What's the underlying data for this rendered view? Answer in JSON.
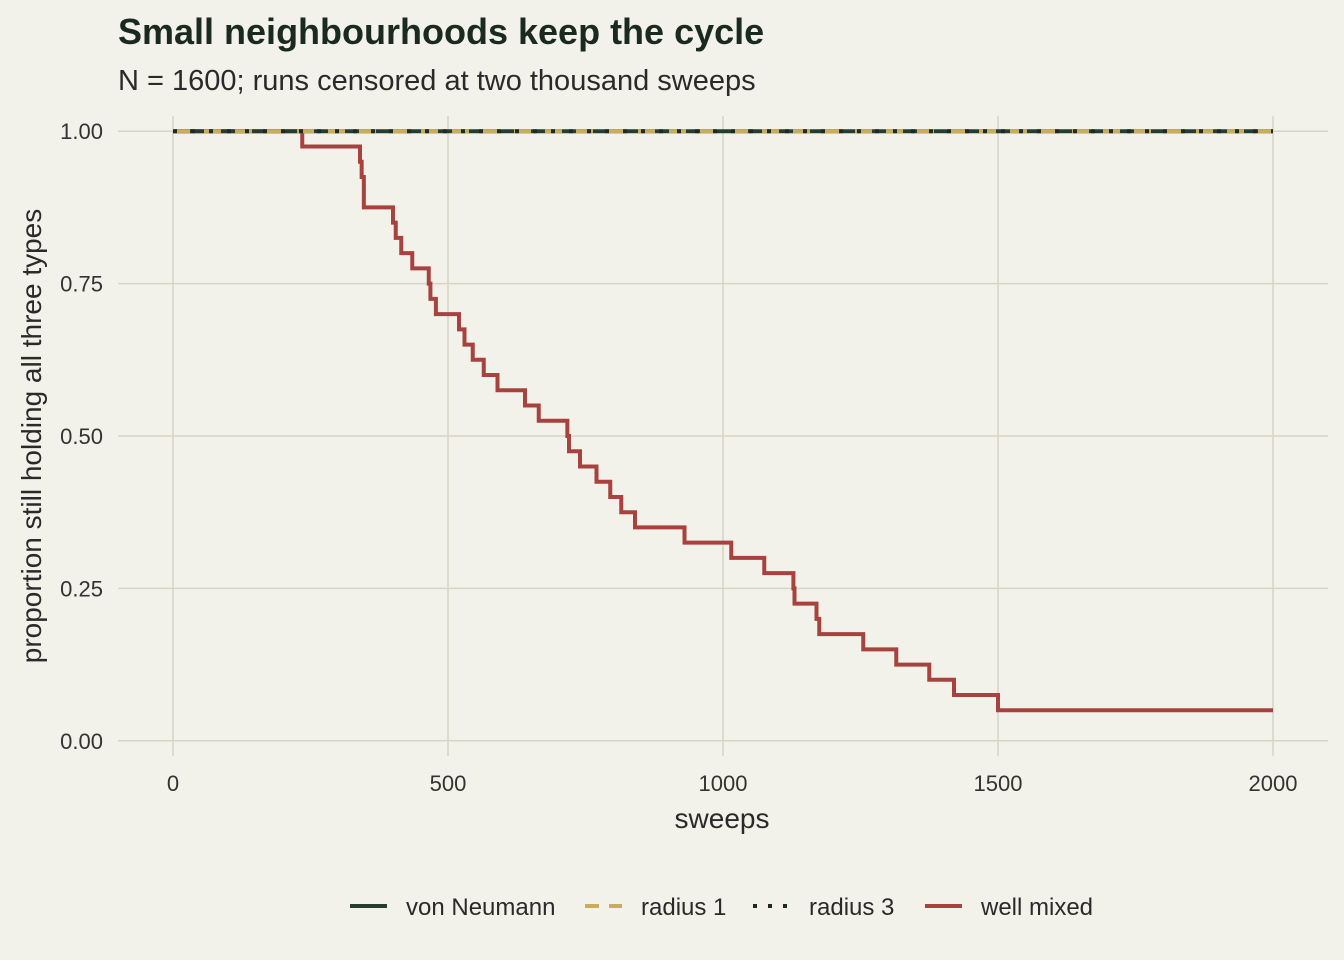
{
  "chart_data": {
    "type": "line",
    "step": true,
    "title": "Small neighbourhoods keep the cycle",
    "subtitle": "N = 1600; runs censored at two thousand sweeps",
    "xlabel": "sweeps",
    "ylabel": "proportion still holding all three types",
    "xlim": [
      -100,
      2100
    ],
    "ylim": [
      -0.025,
      1.025
    ],
    "x_ticks": [
      0,
      500,
      1000,
      1500,
      2000
    ],
    "x_tick_labels": [
      "0",
      "500",
      "1000",
      "1500",
      "2000"
    ],
    "y_ticks": [
      0,
      0.25,
      0.5,
      0.75,
      1.0
    ],
    "y_tick_labels": [
      "0.00",
      "0.25",
      "0.50",
      "0.75",
      "1.00"
    ],
    "grid": true,
    "legend_position": "bottom",
    "series": [
      {
        "name": "von Neumann",
        "color": "#253d2c",
        "dash": "solid",
        "x": [
          0,
          2000
        ],
        "y": [
          1.0,
          1.0
        ]
      },
      {
        "name": "radius 1",
        "color": "#c9ad5a",
        "dash": "dashed",
        "x": [
          0,
          2000
        ],
        "y": [
          1.0,
          1.0
        ]
      },
      {
        "name": "radius 3",
        "color": "#1e2a22",
        "dash": "dotted",
        "x": [
          0,
          2000
        ],
        "y": [
          1.0,
          1.0
        ]
      },
      {
        "name": "well mixed",
        "color": "#a8423f",
        "dash": "solid",
        "x": [
          0,
          235,
          340,
          343,
          347,
          400,
          405,
          415,
          435,
          465,
          468,
          472,
          478,
          520,
          530,
          545,
          565,
          590,
          640,
          665,
          717,
          720,
          740,
          770,
          795,
          815,
          840,
          930,
          1015,
          1075,
          1128,
          1130,
          1170,
          1175,
          1255,
          1315,
          1375,
          1420,
          1500,
          2000
        ],
        "y": [
          1.0,
          0.975,
          0.95,
          0.925,
          0.875,
          0.85,
          0.825,
          0.8,
          0.775,
          0.75,
          0.725,
          0.725,
          0.7,
          0.675,
          0.65,
          0.625,
          0.6,
          0.575,
          0.55,
          0.525,
          0.5,
          0.475,
          0.45,
          0.425,
          0.4,
          0.375,
          0.35,
          0.325,
          0.3,
          0.275,
          0.25,
          0.225,
          0.2,
          0.175,
          0.15,
          0.125,
          0.1,
          0.075,
          0.05,
          0.05
        ]
      }
    ]
  }
}
